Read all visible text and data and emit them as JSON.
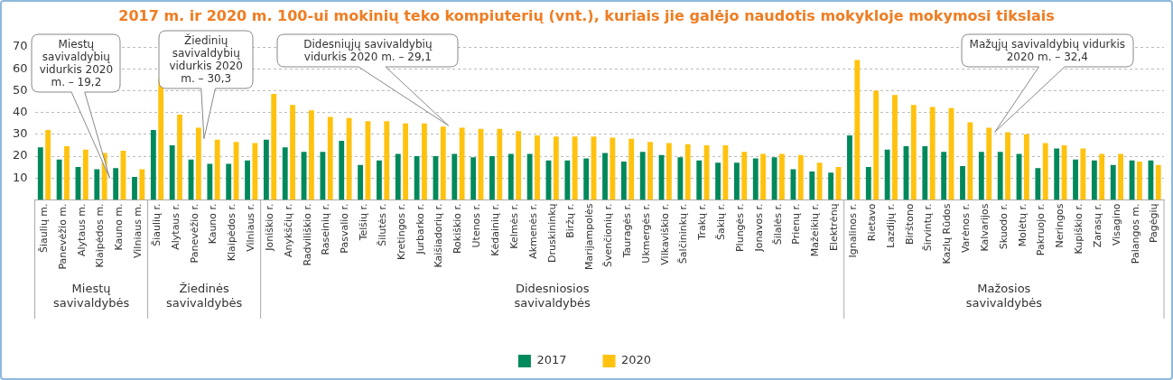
{
  "chart_data": {
    "type": "bar",
    "title": "2017 m. ir 2020 m. 100-ui mokinių teko kompiuterių (vnt.), kuriais jie galėjo naudotis mokykloje mokymosi tikslais",
    "categories": [
      "Šiaulių m.",
      "Panevėžio m.",
      "Alytaus m.",
      "Klaipėdos m.",
      "Kauno m.",
      "Vilniaus m.",
      "Šiaulių r.",
      "Alytaus r.",
      "Panevėžio r.",
      "Kauno r.",
      "Klaipėdos r.",
      "Vilniaus r.",
      "Joniškio r.",
      "Anykščių r.",
      "Radviliškio r.",
      "Raseinių r.",
      "Pasvalio r.",
      "Telšių r.",
      "Šilutės r.",
      "Kretingos r.",
      "Jurbarko r.",
      "Kaišiadorių r.",
      "Rokiškio r.",
      "Utenos r.",
      "Kėdainių r.",
      "Kelmės r.",
      "Akmenės r.",
      "Druskininkų",
      "Biržų r.",
      "Marijampolės",
      "Švenčionių r.",
      "Tauragės r.",
      "Ukmergės r.",
      "Vilkaviškio r.",
      "Šalčininkų r.",
      "Trakų r.",
      "Šakių r.",
      "Plungės r.",
      "Jonavos r.",
      "Šilalės r.",
      "Prienų r.",
      "Mažeikių r.",
      "Elektrėnų",
      "Ignalinos r.",
      "Rietavo",
      "Lazdijų r.",
      "Birštono",
      "Širvintų r.",
      "Kazlų Rūdos",
      "Varėnos r.",
      "Kalvarijos",
      "Skuodo r.",
      "Molėtų r.",
      "Pakruojo r.",
      "Neringos",
      "Kupiškio r.",
      "Zarasų r.",
      "Visagino",
      "Palangos m.",
      "Pagėgių"
    ],
    "series": [
      {
        "name": "2017",
        "color": "#00895a",
        "values": [
          24,
          18.5,
          15,
          14,
          14.5,
          10.5,
          32,
          25,
          18.5,
          16.5,
          16.5,
          18,
          27.5,
          24,
          22,
          22,
          27,
          16,
          18,
          21,
          20,
          20,
          21,
          19.5,
          20,
          21,
          21,
          18,
          18,
          19,
          21.5,
          17.5,
          22,
          20.5,
          19.5,
          18,
          17,
          17,
          19,
          19.5,
          14,
          13,
          12.5,
          29.5,
          15,
          23,
          24.5,
          24.5,
          22,
          15.5,
          22,
          22,
          21,
          14.5,
          23.5,
          18.5,
          18,
          16,
          18,
          18
        ]
      },
      {
        "name": "2020",
        "color": "#ffc20e",
        "values": [
          32,
          24.5,
          23,
          21.5,
          22.5,
          14,
          55.5,
          39,
          33,
          27.5,
          26.5,
          26,
          48.5,
          43.5,
          41,
          38,
          37.5,
          36,
          36,
          35,
          35,
          33.5,
          33,
          32.5,
          32.5,
          31.5,
          29.5,
          29,
          29,
          29,
          28.5,
          28,
          26.5,
          26,
          25.5,
          25,
          25,
          22,
          21,
          21,
          20.5,
          17,
          15,
          64,
          50,
          48,
          43.5,
          42.5,
          42,
          35.5,
          33,
          31,
          30,
          26,
          25,
          23.5,
          21,
          21,
          17.5,
          16
        ]
      }
    ],
    "ylim": [
      0,
      70
    ],
    "yticks": [
      10,
      20,
      30,
      40,
      50,
      60,
      70
    ],
    "grid": "y",
    "legend": "bottom",
    "annotations": [
      "Miestų savivaldybės",
      "Žiedinės savivaldybės",
      "Didesniosios savivaldybės",
      "Mažosios savivaldybės",
      "Miestų savivaldybių vidurkis 2020 m. – 19,2",
      "Žiedinių savivaldybių vidurkis 2020 m. – 30,3",
      "Didesniųjų savivaldybių vidurkis 2020 m. – 29,1",
      "Mažųjų savivaldybių vidurkis 2020 m. – 32,4"
    ]
  }
}
